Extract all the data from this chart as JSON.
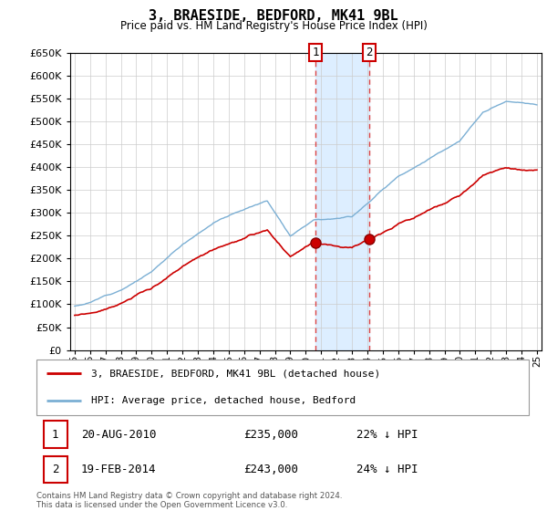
{
  "title": "3, BRAESIDE, BEDFORD, MK41 9BL",
  "subtitle": "Price paid vs. HM Land Registry's House Price Index (HPI)",
  "legend_line1": "3, BRAESIDE, BEDFORD, MK41 9BL (detached house)",
  "legend_line2": "HPI: Average price, detached house, Bedford",
  "transaction1_date": "20-AUG-2010",
  "transaction1_price": "£235,000",
  "transaction1_hpi": "22% ↓ HPI",
  "transaction2_date": "19-FEB-2014",
  "transaction2_price": "£243,000",
  "transaction2_hpi": "24% ↓ HPI",
  "footer": "Contains HM Land Registry data © Crown copyright and database right 2024.\nThis data is licensed under the Open Government Licence v3.0.",
  "property_line_color": "#cc0000",
  "hpi_line_color": "#7bafd4",
  "highlight_bg_color": "#ddeeff",
  "vline_color": "#dd4444",
  "ylim": [
    0,
    650000
  ],
  "yticks": [
    0,
    50000,
    100000,
    150000,
    200000,
    250000,
    300000,
    350000,
    400000,
    450000,
    500000,
    550000,
    600000,
    650000
  ],
  "xstart_year": 1995,
  "xend_year": 2025,
  "transaction1_x": 2010.63,
  "transaction2_x": 2014.12
}
